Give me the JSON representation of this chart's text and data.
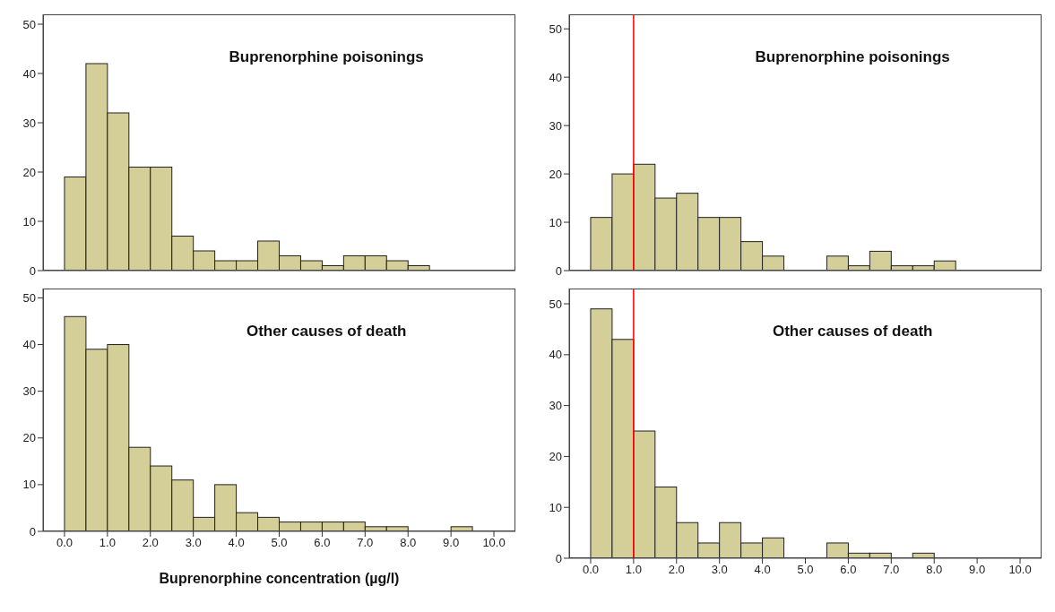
{
  "chart_data": [
    {
      "type": "histogram",
      "title": "Buprenorphine poisonings",
      "bins": [
        0,
        0.5,
        1,
        1.5,
        2,
        2.5,
        3,
        3.5,
        4,
        4.5,
        5,
        5.5,
        6,
        6.5,
        7,
        7.5,
        8,
        8.5,
        9,
        9.5,
        10
      ],
      "values": [
        19,
        42,
        32,
        21,
        21,
        7,
        4,
        2,
        2,
        6,
        3,
        2,
        1,
        3,
        3,
        2,
        1,
        0,
        0,
        0
      ],
      "color": "#d4cf98",
      "xlim": [
        -0.5,
        10.5
      ],
      "ylim": [
        0,
        52
      ],
      "yticks": [
        0,
        10,
        20,
        30,
        40,
        50
      ],
      "tick_labels": "y"
    },
    {
      "type": "histogram",
      "title": "Buprenorphine poisonings",
      "bins": [
        0,
        0.5,
        1,
        1.5,
        2,
        2.5,
        3,
        3.5,
        4,
        4.5,
        5,
        5.5,
        6,
        6.5,
        7,
        7.5,
        8,
        8.5,
        9,
        9.5,
        10
      ],
      "values": [
        11,
        20,
        22,
        15,
        16,
        11,
        11,
        6,
        3,
        0,
        0,
        3,
        1,
        4,
        1,
        1,
        2,
        0,
        0,
        0
      ],
      "color": "#d4cf98",
      "xlim": [
        -0.5,
        10.5
      ],
      "ylim": [
        0,
        53
      ],
      "yticks": [
        0,
        10,
        20,
        30,
        40,
        50
      ],
      "tick_labels": "y",
      "ref_lines": [
        {
          "axis": "x",
          "value": 1,
          "color": "#ff0000"
        }
      ]
    },
    {
      "type": "histogram",
      "title": "Other causes of death",
      "xlabel": "Buprenorphine concentration (µg/l)",
      "bins": [
        0,
        0.5,
        1,
        1.5,
        2,
        2.5,
        3,
        3.5,
        4,
        4.5,
        5,
        5.5,
        6,
        6.5,
        7,
        7.5,
        8,
        8.5,
        9,
        9.5,
        10
      ],
      "values": [
        46,
        39,
        40,
        18,
        14,
        11,
        3,
        10,
        4,
        3,
        2,
        2,
        2,
        2,
        1,
        1,
        0,
        0,
        1,
        0
      ],
      "color": "#d4cf98",
      "xlim": [
        -0.5,
        10.5
      ],
      "ylim": [
        0,
        52
      ],
      "yticks": [
        0,
        10,
        20,
        30,
        40,
        50
      ],
      "xticks": [
        {
          "value": 0,
          "label": "0.0"
        },
        {
          "value": 1,
          "label": "1.0"
        },
        {
          "value": 2,
          "label": "2.0"
        },
        {
          "value": 3,
          "label": "3.0"
        },
        {
          "value": 4,
          "label": "4.0"
        },
        {
          "value": 5,
          "label": "5.0"
        },
        {
          "value": 6,
          "label": "6.0"
        },
        {
          "value": 7,
          "label": "7.0"
        },
        {
          "value": 8,
          "label": "8.0"
        },
        {
          "value": 9,
          "label": "9.0"
        },
        {
          "value": 10,
          "label": "10.0"
        }
      ]
    },
    {
      "type": "histogram",
      "title": "Other causes of death",
      "bins": [
        0,
        0.5,
        1,
        1.5,
        2,
        2.5,
        3,
        3.5,
        4,
        4.5,
        5,
        5.5,
        6,
        6.5,
        7,
        7.5,
        8,
        8.5,
        9,
        9.5,
        10
      ],
      "values": [
        49,
        43,
        25,
        14,
        7,
        3,
        7,
        3,
        4,
        0,
        0,
        3,
        1,
        1,
        0,
        1,
        0,
        0,
        0,
        0
      ],
      "color": "#d4cf98",
      "xlim": [
        -0.5,
        10.5
      ],
      "ylim": [
        0,
        53
      ],
      "yticks": [
        0,
        10,
        20,
        30,
        40,
        50
      ],
      "xticks": [
        {
          "value": 0,
          "label": "0.0"
        },
        {
          "value": 1,
          "label": "1.0"
        },
        {
          "value": 2,
          "label": "2.0"
        },
        {
          "value": 3,
          "label": "3.0"
        },
        {
          "value": 4,
          "label": "4.0"
        },
        {
          "value": 5,
          "label": "5.0"
        },
        {
          "value": 6,
          "label": "6.0"
        },
        {
          "value": 7,
          "label": "7.0"
        },
        {
          "value": 8,
          "label": "8.0"
        },
        {
          "value": 9,
          "label": "9.0"
        },
        {
          "value": 10,
          "label": "10.0"
        }
      ],
      "ref_lines": [
        {
          "axis": "x",
          "value": 1,
          "color": "#ff0000"
        }
      ]
    }
  ]
}
